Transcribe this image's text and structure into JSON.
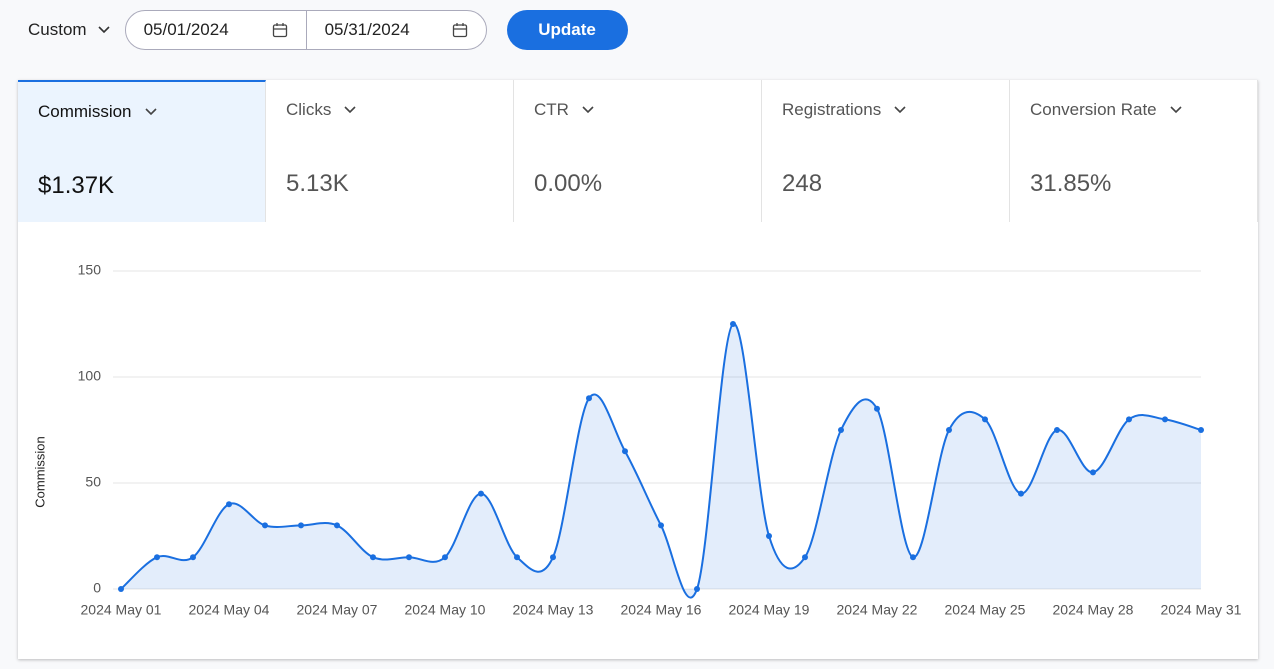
{
  "toolbar": {
    "range": "Custom",
    "start_date": "05/01/2024",
    "end_date": "05/31/2024",
    "button": "Update"
  },
  "metrics": [
    {
      "label": "Commission",
      "value": "$1.37K"
    },
    {
      "label": "Clicks",
      "value": "5.13K"
    },
    {
      "label": "CTR",
      "value": "0.00%"
    },
    {
      "label": "Registrations",
      "value": "248"
    },
    {
      "label": "Conversion Rate",
      "value": "31.85%"
    }
  ],
  "chart_data": {
    "type": "area",
    "y_label": "Commission",
    "color": "#1a6fe0",
    "grid": true,
    "categories": [
      "2024 May 01",
      null,
      null,
      "2024 May 04",
      null,
      null,
      "2024 May 07",
      null,
      null,
      "2024 May 10",
      null,
      null,
      "2024 May 13",
      null,
      null,
      "2024 May 16",
      null,
      null,
      "2024 May 19",
      null,
      null,
      "2024 May 22",
      null,
      null,
      "2024 May 25",
      null,
      null,
      "2024 May 28",
      null,
      null,
      "2024 May 31"
    ],
    "values": [
      0,
      15,
      15,
      40,
      30,
      30,
      30,
      15,
      15,
      15,
      45,
      15,
      15,
      90,
      65,
      30,
      0,
      125,
      25,
      15,
      75,
      85,
      15,
      75,
      80,
      45,
      75,
      55,
      80,
      80,
      75
    ],
    "ylim": [
      0,
      150
    ],
    "yticks": [
      0,
      50,
      100,
      150
    ]
  }
}
